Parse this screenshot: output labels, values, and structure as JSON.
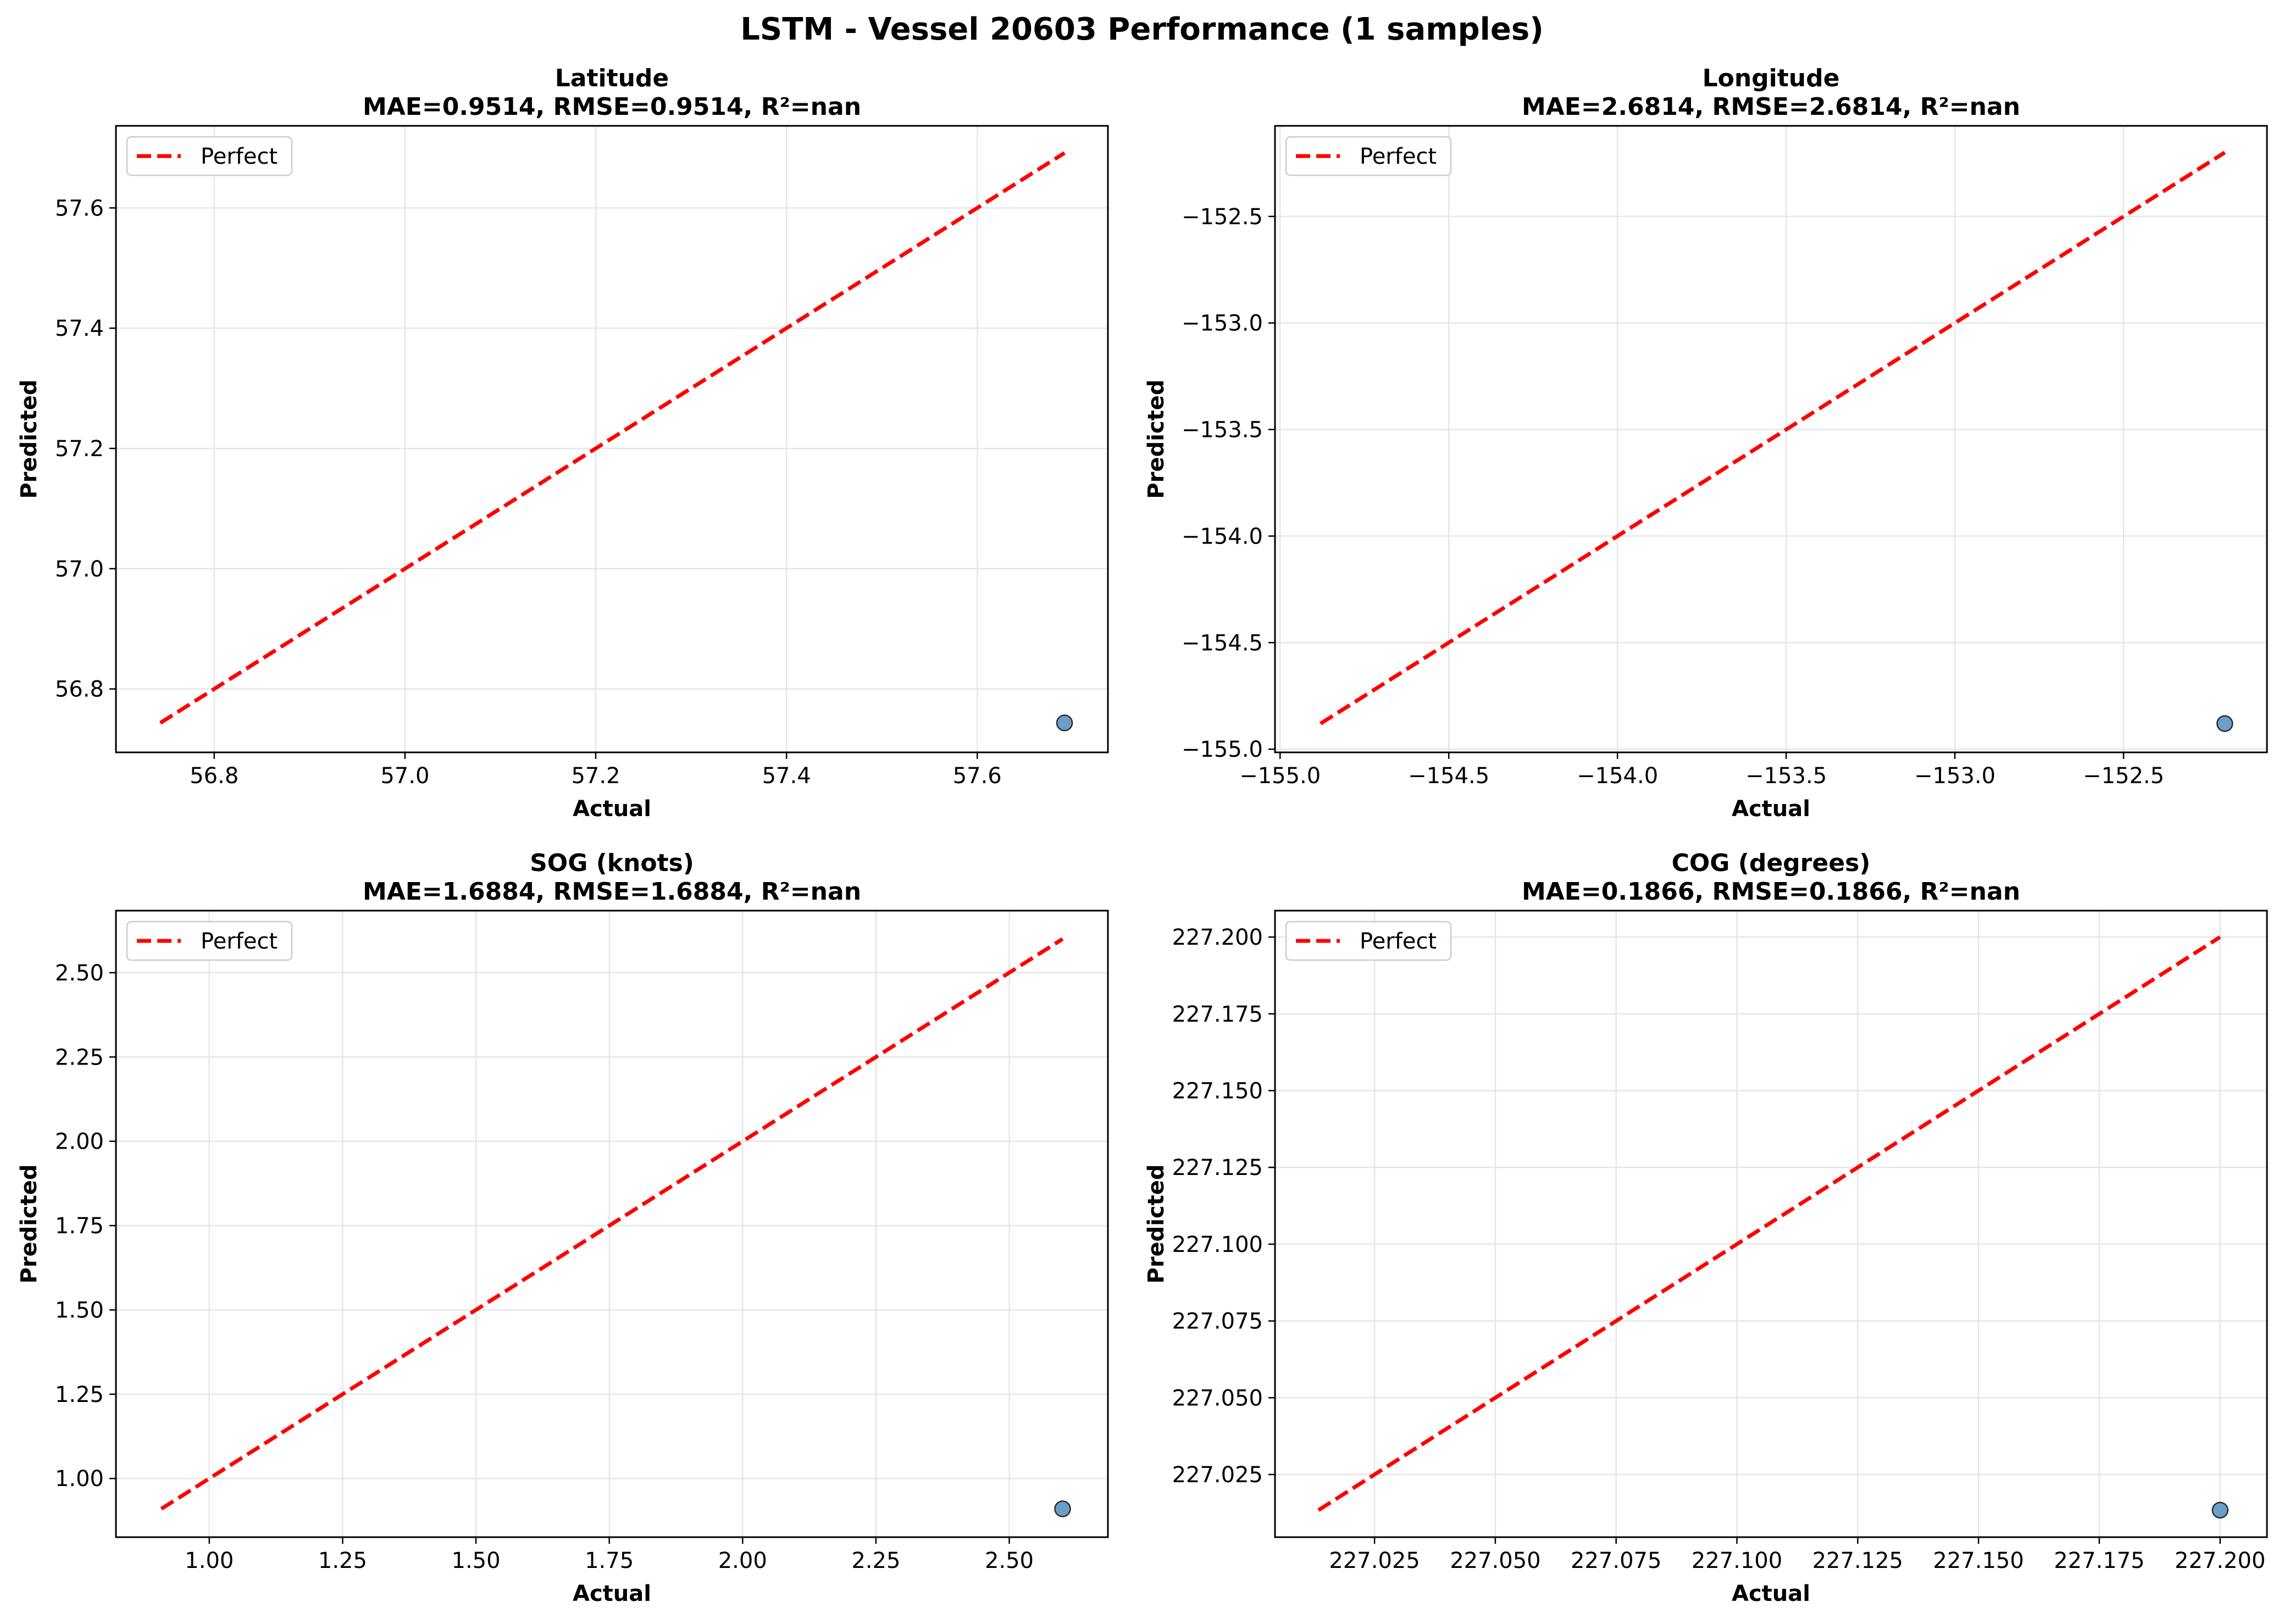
{
  "suptitle": "LSTM - Vessel 20603 Performance (1 samples)",
  "colors": {
    "perfect_line": "#ff0000",
    "point_fill": "#6b9fc8",
    "point_edge": "#2b2b2b",
    "grid": "#e6e6e6"
  },
  "chart_data": [
    {
      "type": "scatter",
      "title": "Latitude",
      "subtitle": "MAE=0.9514, RMSE=0.9514, R²=nan",
      "xlabel": "Actual",
      "ylabel": "Predicted",
      "xlim": [
        56.697,
        57.737
      ],
      "ylim": [
        56.6945,
        57.7365
      ],
      "xticks": [
        "56.8",
        "57.0",
        "57.2",
        "57.4",
        "57.6"
      ],
      "xtick_values": [
        56.8,
        57.0,
        57.2,
        57.4,
        57.6
      ],
      "yticks": [
        "56.8",
        "57.0",
        "57.2",
        "57.4",
        "57.6"
      ],
      "ytick_values": [
        56.8,
        57.0,
        57.2,
        57.4,
        57.6
      ],
      "perfect_line": [
        [
          56.7435,
          56.7435
        ],
        [
          57.6915,
          57.6915
        ]
      ],
      "points": [
        {
          "x": 57.6915,
          "y": 56.7435
        }
      ],
      "legend": [
        "Perfect"
      ],
      "legend_position": "top-left",
      "grid": true
    },
    {
      "type": "scatter",
      "title": "Longitude",
      "subtitle": "MAE=2.6814, RMSE=2.6814, R²=nan",
      "xlabel": "Actual",
      "ylabel": "Predicted",
      "xlim": [
        -155.015,
        -152.075
      ],
      "ylim": [
        -155.015,
        -152.075
      ],
      "xticks": [
        "−155.0",
        "−154.5",
        "−154.0",
        "−153.5",
        "−153.0",
        "−152.5"
      ],
      "xtick_values": [
        -155.0,
        -154.5,
        -154.0,
        -153.5,
        -153.0,
        -152.5
      ],
      "yticks": [
        "−155.0",
        "−154.5",
        "−154.0",
        "−153.5",
        "−153.0",
        "−152.5"
      ],
      "ytick_values": [
        -155.0,
        -154.5,
        -154.0,
        -153.5,
        -153.0,
        -152.5
      ],
      "perfect_line": [
        [
          -154.88,
          -154.88
        ],
        [
          -152.2,
          -152.2
        ]
      ],
      "points": [
        {
          "x": -152.2,
          "y": -154.88
        }
      ],
      "legend": [
        "Perfect"
      ],
      "legend_position": "top-left",
      "grid": true
    },
    {
      "type": "scatter",
      "title": "SOG (knots)",
      "subtitle": "MAE=1.6884, RMSE=1.6884, R²=nan",
      "xlabel": "Actual",
      "ylabel": "Predicted",
      "xlim": [
        0.825,
        2.685
      ],
      "ylim": [
        0.826,
        2.684
      ],
      "xticks": [
        "1.00",
        "1.25",
        "1.50",
        "1.75",
        "2.00",
        "2.25",
        "2.50"
      ],
      "xtick_values": [
        1.0,
        1.25,
        1.5,
        1.75,
        2.0,
        2.25,
        2.5
      ],
      "yticks": [
        "1.00",
        "1.25",
        "1.50",
        "1.75",
        "2.00",
        "2.25",
        "2.50"
      ],
      "ytick_values": [
        1.0,
        1.25,
        1.5,
        1.75,
        2.0,
        2.25,
        2.5
      ],
      "perfect_line": [
        [
          0.91,
          0.91
        ],
        [
          2.6,
          2.6
        ]
      ],
      "points": [
        {
          "x": 2.6,
          "y": 0.91
        }
      ],
      "legend": [
        "Perfect"
      ],
      "legend_position": "top-left",
      "grid": true
    },
    {
      "type": "scatter",
      "title": "COG (degrees)",
      "subtitle": "MAE=0.1866, RMSE=0.1866, R²=nan",
      "xlabel": "Actual",
      "ylabel": "Predicted",
      "xlim": [
        227.0044,
        227.2097
      ],
      "ylim": [
        227.0046,
        227.2086
      ],
      "xticks": [
        "227.025",
        "227.050",
        "227.075",
        "227.100",
        "227.125",
        "227.150",
        "227.175",
        "227.200"
      ],
      "xtick_values": [
        227.025,
        227.05,
        227.075,
        227.1,
        227.125,
        227.15,
        227.175,
        227.2
      ],
      "yticks": [
        "227.025",
        "227.050",
        "227.075",
        "227.100",
        "227.125",
        "227.150",
        "227.175",
        "227.200"
      ],
      "ytick_values": [
        227.025,
        227.05,
        227.075,
        227.1,
        227.125,
        227.15,
        227.175,
        227.2
      ],
      "perfect_line": [
        [
          227.0134,
          227.0134
        ],
        [
          227.2,
          227.2
        ]
      ],
      "points": [
        {
          "x": 227.2,
          "y": 227.0134
        }
      ],
      "legend": [
        "Perfect"
      ],
      "legend_position": "top-left",
      "grid": true
    }
  ]
}
